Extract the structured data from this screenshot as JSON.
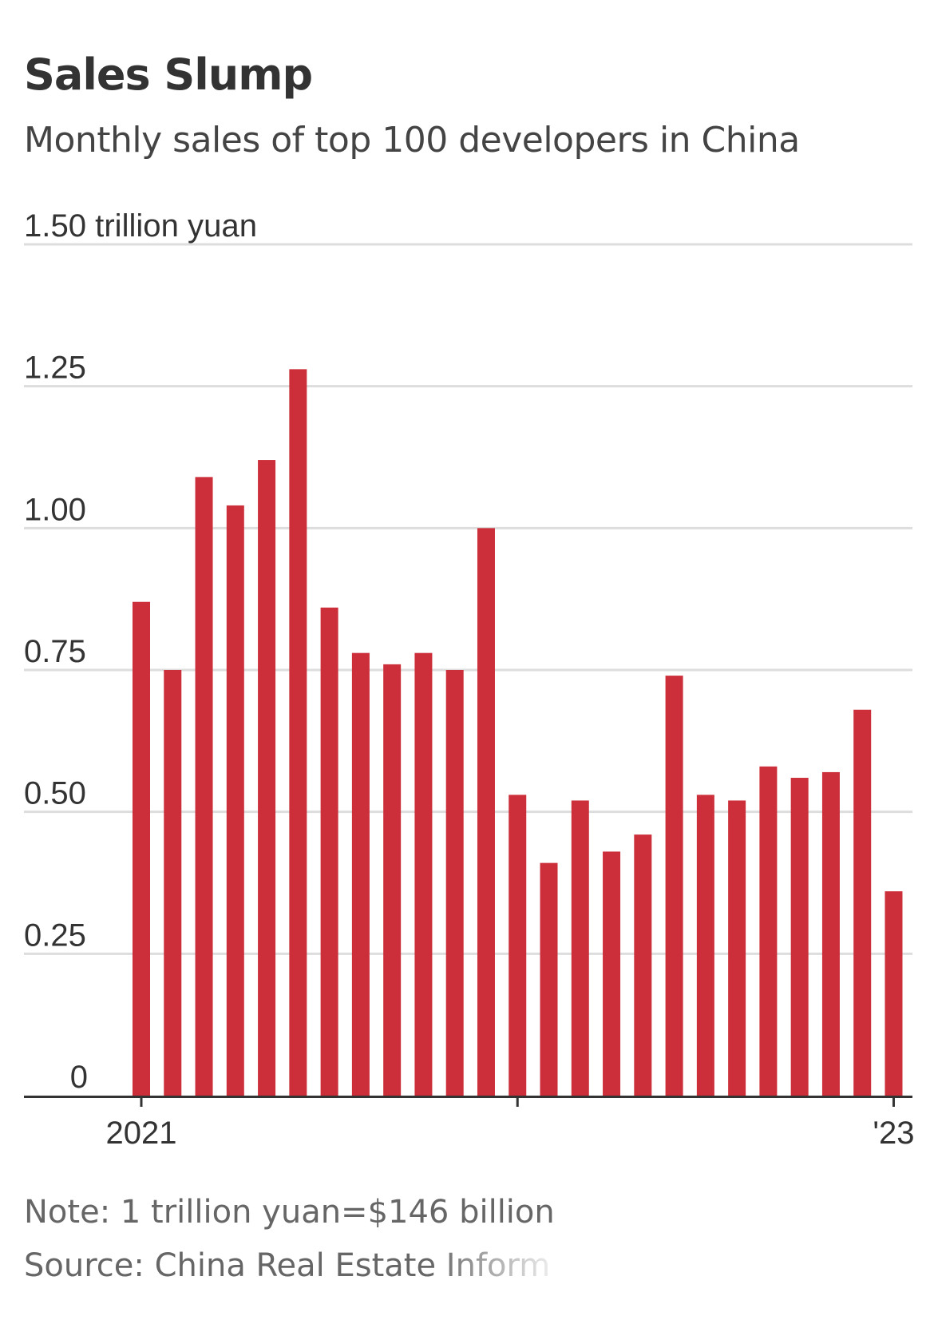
{
  "title": "Sales Slump",
  "subtitle": "Monthly sales of top 100 developers in China",
  "note": "Note: 1 trillion yuan=$146 billion",
  "source": "Source: China Real Estate Inform",
  "colors": {
    "bar": "#cc2f3a",
    "grid": "#dddddd",
    "axis": "#333333",
    "text": "#333333"
  },
  "chart_data": {
    "type": "bar",
    "y_unit_label": "1.50 trillion yuan",
    "yticks": [
      "0",
      "0.25",
      "0.50",
      "0.75",
      "1.00",
      "1.25"
    ],
    "ytick_values": [
      0,
      0.25,
      0.5,
      0.75,
      1.0,
      1.25,
      1.5
    ],
    "ylim": [
      0,
      1.5
    ],
    "x_tick_labels": [
      "2021",
      "'23"
    ],
    "categories": [
      "2021-01",
      "2021-02",
      "2021-03",
      "2021-04",
      "2021-05",
      "2021-06",
      "2021-07",
      "2021-08",
      "2021-09",
      "2021-10",
      "2021-11",
      "2021-12",
      "2022-01",
      "2022-02",
      "2022-03",
      "2022-04",
      "2022-05",
      "2022-06",
      "2022-07",
      "2022-08",
      "2022-09",
      "2022-10",
      "2022-11",
      "2022-12",
      "2023-01"
    ],
    "values": [
      0.87,
      0.75,
      1.09,
      1.04,
      1.12,
      1.28,
      0.86,
      0.78,
      0.76,
      0.78,
      0.75,
      1.0,
      0.53,
      0.41,
      0.52,
      0.43,
      0.46,
      0.74,
      0.53,
      0.52,
      0.58,
      0.56,
      0.57,
      0.68,
      0.36
    ],
    "grid": true
  }
}
